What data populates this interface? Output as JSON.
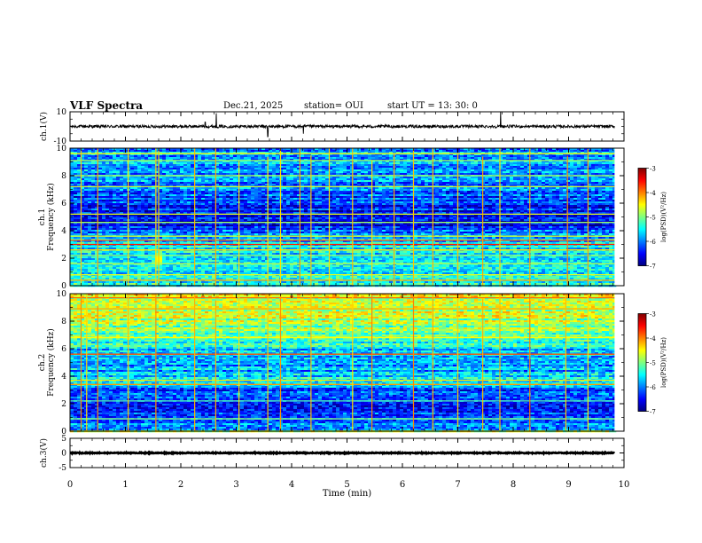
{
  "header": {
    "title": "VLF Spectra",
    "date": "Dec.21, 2025",
    "station_text": "station= OUI",
    "start_label": "start  UT =",
    "start_time": "13: 30: 0"
  },
  "colors": {
    "axis": "#000000",
    "waveform": "#000000",
    "background": "#ffffff",
    "colormap": [
      "#00007f",
      "#0000ff",
      "#007fff",
      "#00ffff",
      "#7fff7f",
      "#ffff00",
      "#ff7f00",
      "#ff0000",
      "#7f0000"
    ]
  },
  "chart_data": [
    {
      "id": "ch1-waveform",
      "type": "line",
      "ylabel": "ch.1(V)",
      "ylim": [
        -10,
        10
      ],
      "yticks": [
        "10",
        "-10"
      ],
      "baseline_v": 0,
      "noise_amplitude_v": 1,
      "spikes": [
        {
          "t_min": 2.44,
          "v": 3
        },
        {
          "t_min": 2.64,
          "v": 9
        },
        {
          "t_min": 3.57,
          "v": -7
        },
        {
          "t_min": 4.21,
          "v": -5
        },
        {
          "t_min": 7.77,
          "v": 10
        }
      ]
    },
    {
      "id": "ch1-spectrogram",
      "type": "heatmap",
      "ylabel": "Frequency (kHz)",
      "channel_label": "ch.1",
      "ylim": [
        0,
        10
      ],
      "yticks": [
        "0",
        "2",
        "4",
        "6",
        "8",
        "10"
      ],
      "color_range": [
        -7,
        -3
      ],
      "colorbar_label": "log(PSD)(V²/Hz)",
      "colorbar_ticks": [
        "-3",
        "-4",
        "-5",
        "-6",
        "-7"
      ],
      "base_logpsd_by_freq_khz": [
        {
          "f": 0.0,
          "v": -5.6
        },
        {
          "f": 0.5,
          "v": -5.2
        },
        {
          "f": 1.0,
          "v": -5.5
        },
        {
          "f": 1.5,
          "v": -5.7
        },
        {
          "f": 2.0,
          "v": -5.8
        },
        {
          "f": 3.0,
          "v": -5.5
        },
        {
          "f": 3.8,
          "v": -6.1
        },
        {
          "f": 4.5,
          "v": -6.6
        },
        {
          "f": 6.0,
          "v": -6.2
        },
        {
          "f": 8.0,
          "v": -6.0
        },
        {
          "f": 10.0,
          "v": -5.8
        }
      ],
      "line_bands": [
        {
          "f": 0.4,
          "v": -4.2
        },
        {
          "f": 0.8,
          "v": -4.6
        },
        {
          "f": 1.6,
          "v": -4.8
        },
        {
          "f": 2.2,
          "v": -4.9
        },
        {
          "f": 2.6,
          "v": -4.4
        },
        {
          "f": 3.0,
          "v": -3.6
        },
        {
          "f": 3.3,
          "v": -3.8
        },
        {
          "f": 3.6,
          "v": -4.7
        },
        {
          "f": 4.6,
          "v": -4.9
        },
        {
          "f": 5.2,
          "v": -4.6
        },
        {
          "f": 7.2,
          "v": -4.7
        },
        {
          "f": 8.0,
          "v": -4.8
        },
        {
          "f": 9.1,
          "v": -4.9
        },
        {
          "f": 9.6,
          "v": -4.5
        }
      ],
      "burst_times_min": [
        0.2,
        0.5,
        1.05,
        1.55,
        1.6,
        2.25,
        2.63,
        3.05,
        3.57,
        3.8,
        4.15,
        4.35,
        4.68,
        5.1,
        5.45,
        5.85,
        6.2,
        6.55,
        7.0,
        7.45,
        7.76,
        8.3,
        8.98,
        9.35
      ],
      "hotspots": [
        {
          "t_min": 1.57,
          "f_khz": 1.9,
          "v": -4.4
        }
      ]
    },
    {
      "id": "ch2-spectrogram",
      "type": "heatmap",
      "ylabel": "Frequency (kHz)",
      "channel_label": "ch.2",
      "ylim": [
        0,
        10
      ],
      "yticks": [
        "0",
        "2",
        "4",
        "6",
        "8",
        "10"
      ],
      "color_range": [
        -7,
        -3
      ],
      "colorbar_label": "log(PSD)(V²/Hz)",
      "colorbar_ticks": [
        "-3",
        "-4",
        "-5",
        "-6",
        "-7"
      ],
      "base_logpsd_by_freq_khz": [
        {
          "f": 0.0,
          "v": -6.0
        },
        {
          "f": 1.0,
          "v": -6.3
        },
        {
          "f": 2.0,
          "v": -6.4
        },
        {
          "f": 3.0,
          "v": -6.2
        },
        {
          "f": 3.5,
          "v": -5.2
        },
        {
          "f": 4.0,
          "v": -5.8
        },
        {
          "f": 5.0,
          "v": -5.9
        },
        {
          "f": 6.0,
          "v": -5.6
        },
        {
          "f": 7.0,
          "v": -5.0
        },
        {
          "f": 8.0,
          "v": -4.9
        },
        {
          "f": 9.0,
          "v": -4.7
        },
        {
          "f": 10.0,
          "v": -4.6
        }
      ],
      "line_bands": [
        {
          "f": 0.9,
          "v": -5.0
        },
        {
          "f": 2.2,
          "v": -5.2
        },
        {
          "f": 3.4,
          "v": -4.1
        },
        {
          "f": 3.7,
          "v": -4.4
        },
        {
          "f": 5.6,
          "v": -3.8
        },
        {
          "f": 6.8,
          "v": -4.5
        },
        {
          "f": 8.9,
          "v": -4.2
        },
        {
          "f": 9.7,
          "v": -3.9
        }
      ],
      "burst_times_min": [
        0.2,
        0.3,
        0.5,
        1.05,
        1.55,
        2.25,
        2.63,
        3.05,
        3.57,
        3.8,
        4.35,
        5.1,
        5.45,
        6.2,
        6.55,
        7.0,
        7.45,
        7.76,
        8.3,
        8.95,
        9.35
      ],
      "hotspots": []
    },
    {
      "id": "ch3-waveform",
      "type": "line",
      "ylabel": "ch.3(V)",
      "ylim": [
        -5,
        5
      ],
      "yticks": [
        "5",
        "0",
        "-5"
      ],
      "baseline_v": 0,
      "noise_amplitude_v": 0.15,
      "spikes": []
    }
  ],
  "xaxis": {
    "label": "Time (min)",
    "xlim": [
      0,
      10
    ],
    "ticks": [
      "0",
      "1",
      "2",
      "3",
      "4",
      "5",
      "6",
      "7",
      "8",
      "9",
      "10"
    ],
    "data_end_min": 9.83
  }
}
